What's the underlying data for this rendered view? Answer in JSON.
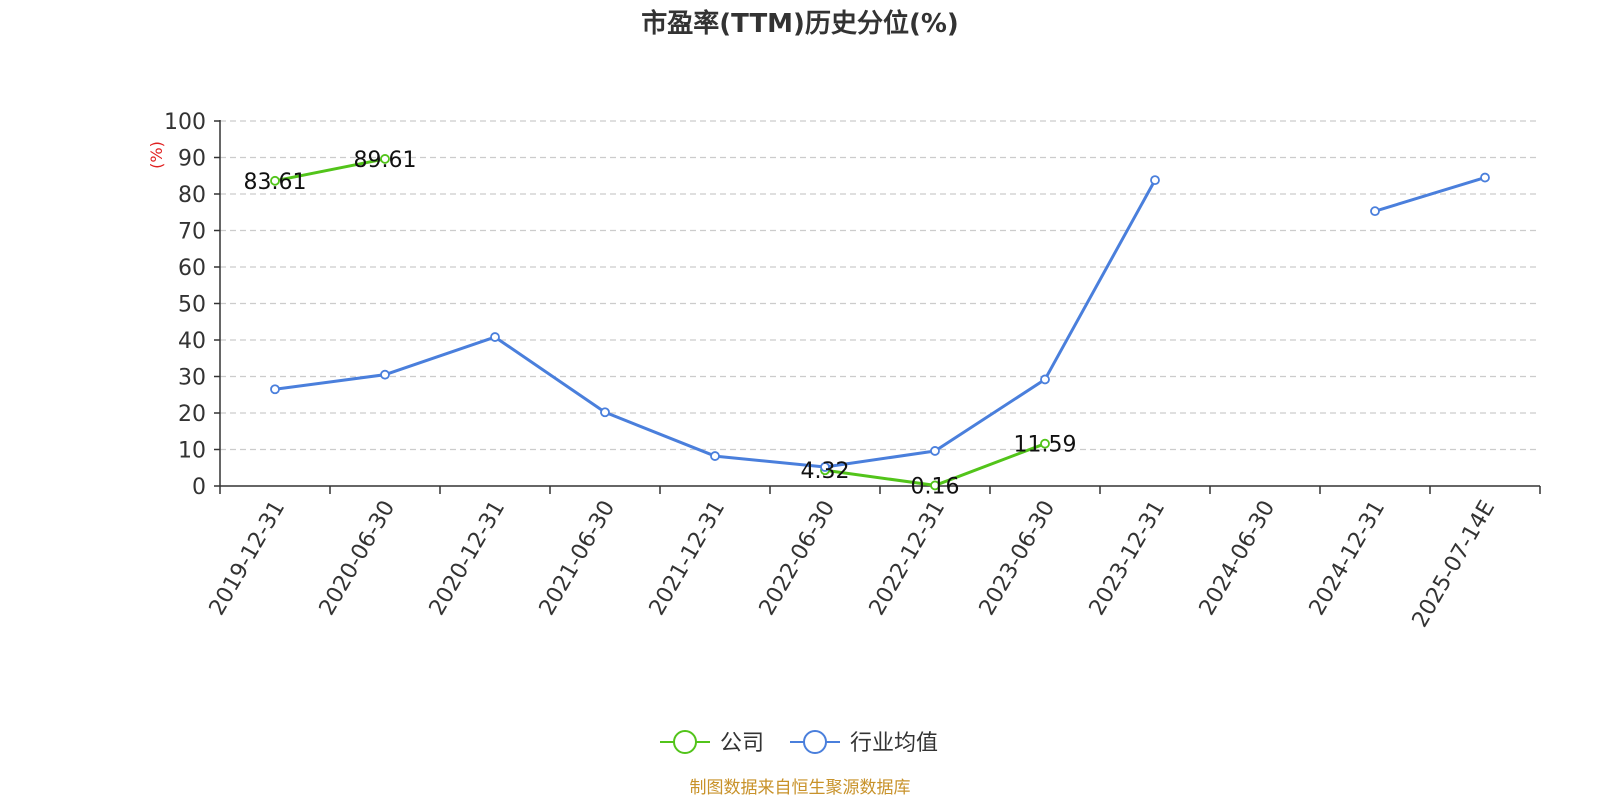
{
  "chart_data": {
    "type": "line",
    "title": "市盈率(TTM)历史分位(%)",
    "ylabel": "(%)",
    "ylim": [
      0,
      100
    ],
    "yticks": [
      0,
      10,
      20,
      30,
      40,
      50,
      60,
      70,
      80,
      90,
      100
    ],
    "categories": [
      "2019-12-31",
      "2020-06-30",
      "2020-12-31",
      "2021-06-30",
      "2021-12-31",
      "2022-06-30",
      "2022-12-31",
      "2023-06-30",
      "2023-12-31",
      "2024-06-30",
      "2024-12-31",
      "2025-07-14E"
    ],
    "grid": "horizontal dashed",
    "legend_position": "bottom-center",
    "series": [
      {
        "name": "公司",
        "color": "#52c41a",
        "values": [
          83.61,
          89.61,
          null,
          null,
          null,
          4.32,
          0.16,
          11.59,
          null,
          null,
          null,
          null
        ],
        "labels": [
          "83.61",
          "89.61",
          "",
          "",
          "",
          "4.32",
          "0.16",
          "11.59",
          "",
          "",
          "",
          ""
        ]
      },
      {
        "name": "行业均值",
        "color": "#4a7fdc",
        "values": [
          26.5,
          30.5,
          40.8,
          20.2,
          8.2,
          5.2,
          9.6,
          29.2,
          83.8,
          null,
          75.3,
          84.5
        ],
        "labels": []
      }
    ],
    "source": "制图数据来自恒生聚源数据库",
    "source_color": "#c8922a",
    "unit_color": "#e02020",
    "axis_color": "#333333",
    "grid_color": "#cccccc"
  }
}
